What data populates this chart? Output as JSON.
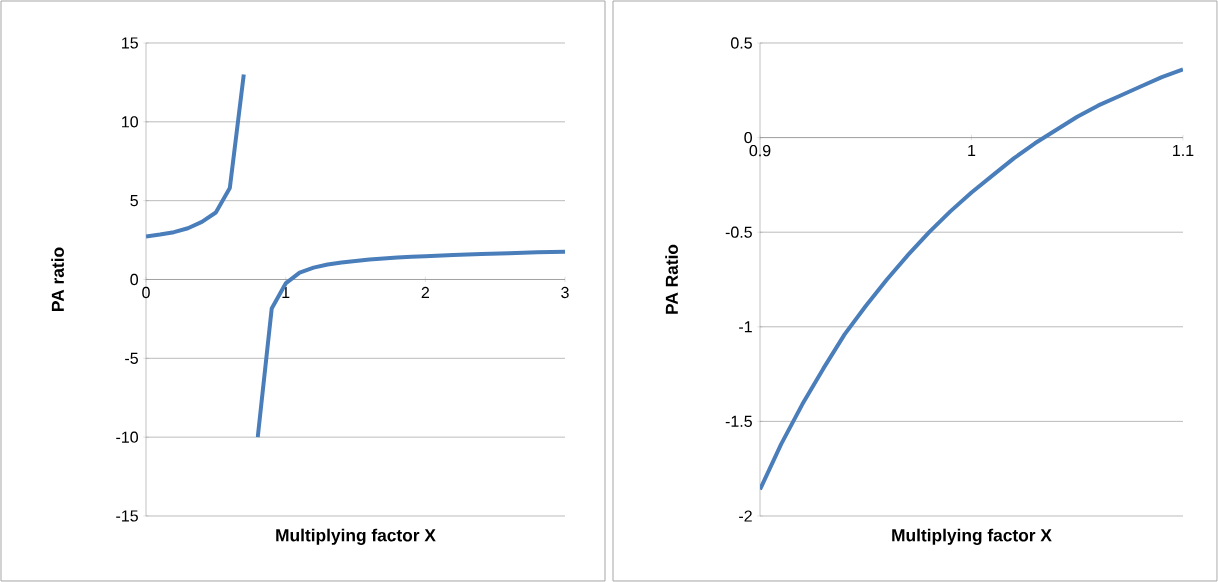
{
  "chart_data": [
    {
      "type": "line",
      "xlabel": "Multiplying factor X",
      "ylabel": "PA ratio",
      "xlim": [
        0,
        3
      ],
      "ylim": [
        -15,
        15
      ],
      "xticks": [
        0,
        1,
        2,
        3
      ],
      "yticks": [
        -15,
        -10,
        -5,
        0,
        5,
        10,
        15
      ],
      "grid": "y",
      "marker": "none",
      "line_style": "solid",
      "series": [
        {
          "color": "#4a7ebb",
          "x": [
            0,
            0.1,
            0.2,
            0.3,
            0.4,
            0.5,
            0.6,
            0.7
          ],
          "values": [
            2.73,
            2.85,
            3.0,
            3.25,
            3.65,
            4.25,
            5.8,
            13.0
          ]
        },
        {
          "color": "#4a7ebb",
          "x": [
            0.8,
            0.9,
            1.0,
            1.1,
            1.2,
            1.3,
            1.4,
            1.5,
            1.6,
            1.7,
            1.8,
            1.9,
            2.0,
            2.2,
            2.4,
            2.6,
            2.8,
            3.0
          ],
          "values": [
            -10.0,
            -1.84,
            -0.25,
            0.44,
            0.75,
            0.95,
            1.08,
            1.18,
            1.27,
            1.33,
            1.39,
            1.44,
            1.48,
            1.56,
            1.62,
            1.67,
            1.72,
            1.76
          ]
        }
      ]
    },
    {
      "type": "line",
      "xlabel": "Multiplying factor X",
      "ylabel": "PA Ratio",
      "xlim": [
        0.9,
        1.1
      ],
      "ylim": [
        -2,
        0.5
      ],
      "xticks": [
        0.9,
        1,
        1.1
      ],
      "yticks": [
        -2,
        -1.5,
        -1,
        -0.5,
        0,
        0.5
      ],
      "grid": "y",
      "marker": "none",
      "line_style": "solid",
      "series": [
        {
          "color": "#4a7ebb",
          "x": [
            0.9,
            0.91,
            0.92,
            0.93,
            0.94,
            0.95,
            0.96,
            0.97,
            0.98,
            0.99,
            1.0,
            1.01,
            1.02,
            1.03,
            1.04,
            1.05,
            1.06,
            1.07,
            1.08,
            1.09,
            1.1
          ],
          "values": [
            -1.86,
            -1.62,
            -1.41,
            -1.22,
            -1.04,
            -0.89,
            -0.75,
            -0.62,
            -0.5,
            -0.39,
            -0.29,
            -0.2,
            -0.11,
            -0.03,
            0.04,
            0.11,
            0.17,
            0.22,
            0.27,
            0.32,
            0.36
          ]
        }
      ]
    }
  ]
}
